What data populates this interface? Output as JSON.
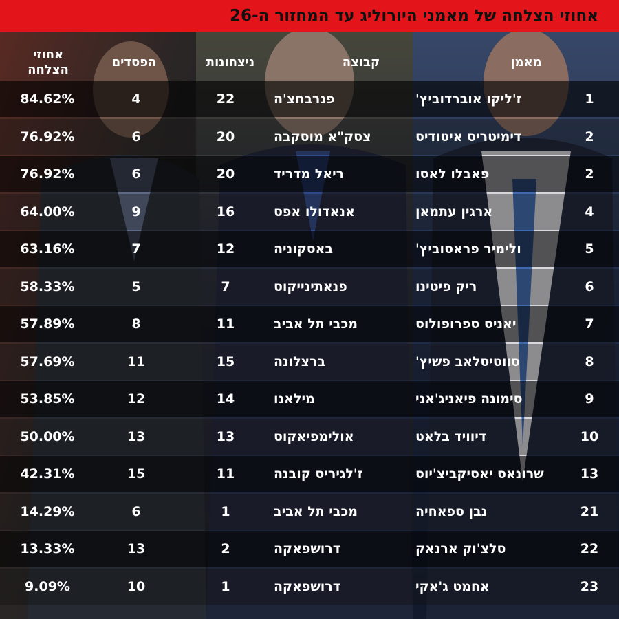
{
  "title": "אחוזי הצלחה של מאמני היורוליג עד המחזור ה-26",
  "headers": {
    "coach": "מאמן",
    "team": "קבוצה",
    "wins": "ניצחונות",
    "losses": "הפסדים",
    "pct": "אחוזי הצלחה"
  },
  "rows": [
    {
      "rank": "1",
      "coach": "ז'ליקו אוברדוביץ'",
      "team": "פנרבחצ'ה",
      "wins": "22",
      "losses": "4",
      "pct": "84.62%"
    },
    {
      "rank": "2",
      "coach": "דימיטריס איטודיס",
      "team": "צסק\"א מוסקבה",
      "wins": "20",
      "losses": "6",
      "pct": "76.92%"
    },
    {
      "rank": "2",
      "coach": "פאבלו לאסו",
      "team": "ריאל מדריד",
      "wins": "20",
      "losses": "6",
      "pct": "76.92%"
    },
    {
      "rank": "4",
      "coach": "ארגין עתמאן",
      "team": "אנאדולו אפס",
      "wins": "16",
      "losses": "9",
      "pct": "64.00%"
    },
    {
      "rank": "5",
      "coach": "ולימיר פראסוביץ'",
      "team": "באסקוניה",
      "wins": "12",
      "losses": "7",
      "pct": "63.16%"
    },
    {
      "rank": "6",
      "coach": "ריק פיטינו",
      "team": "פנאתינייקוס",
      "wins": "7",
      "losses": "5",
      "pct": "58.33%"
    },
    {
      "rank": "7",
      "coach": "יאניס ספרופולוס",
      "team": "מכבי תל אביב",
      "wins": "11",
      "losses": "8",
      "pct": "57.89%"
    },
    {
      "rank": "8",
      "coach": "סווטיסלאב פשיץ'",
      "team": "ברצלונה",
      "wins": "15",
      "losses": "11",
      "pct": "57.69%"
    },
    {
      "rank": "9",
      "coach": "סימונה פיאניג'אני",
      "team": "מילאנו",
      "wins": "14",
      "losses": "12",
      "pct": "53.85%"
    },
    {
      "rank": "10",
      "coach": "דיוויד בלאט",
      "team": "אולימפיאקוס",
      "wins": "13",
      "losses": "13",
      "pct": "50.00%"
    },
    {
      "rank": "13",
      "coach": "שרונאס יאסיקביצ'יוס",
      "team": "ז'לגיריס קובנה",
      "wins": "11",
      "losses": "15",
      "pct": "42.31%"
    },
    {
      "rank": "21",
      "coach": "נבן ספאחיה",
      "team": "מכבי תל אביב",
      "wins": "1",
      "losses": "6",
      "pct": "14.29%"
    },
    {
      "rank": "22",
      "coach": "סלצ'וק ארנאק",
      "team": "דרושפאקה",
      "wins": "2",
      "losses": "13",
      "pct": "13.33%"
    },
    {
      "rank": "23",
      "coach": "אחמט ג'אקי",
      "team": "דרושפאקה",
      "wins": "1",
      "losses": "10",
      "pct": "9.09%"
    }
  ],
  "colors": {
    "title_bar": "#e4141b",
    "text": "#ffffff"
  }
}
